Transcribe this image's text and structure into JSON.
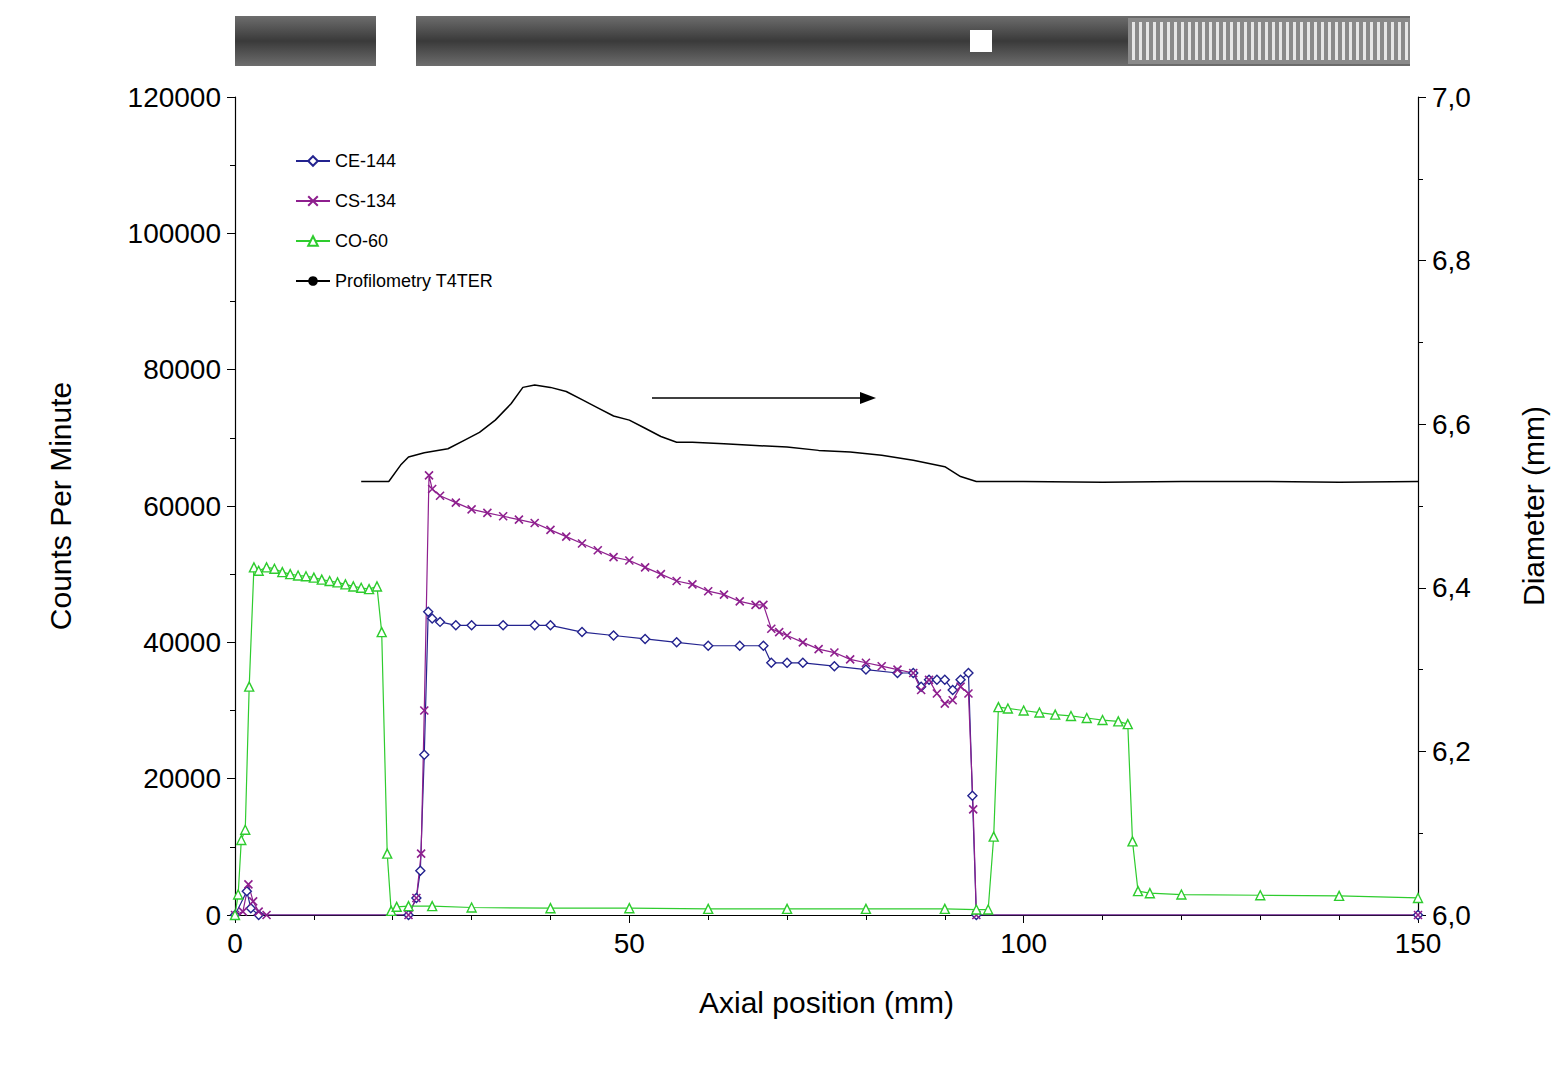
{
  "chart_data": {
    "type": "line",
    "xlabel": "Axial position (mm)",
    "ylabel": "Counts Per Minute",
    "y2label": "Diameter (mm)",
    "xlim": [
      0,
      150
    ],
    "xticks": [
      0,
      50,
      100,
      150
    ],
    "ylim": [
      0,
      120000
    ],
    "yticks": [
      0,
      20000,
      40000,
      60000,
      80000,
      100000,
      120000
    ],
    "y2lim": [
      6,
      7
    ],
    "y2ticks": [
      {
        "value": 6,
        "label": "6,0"
      },
      {
        "value": 6.2,
        "label": "6,2"
      },
      {
        "value": 6.4,
        "label": "6,4"
      },
      {
        "value": 6.6,
        "label": "6,6"
      },
      {
        "value": 6.8,
        "label": "6,8"
      },
      {
        "value": 7,
        "label": "7,0"
      }
    ],
    "grid": false,
    "legend": "upper left",
    "series": [
      {
        "name": "CE-144",
        "color": "#23238f",
        "marker": "diamond",
        "line_style": "solid",
        "x": [
          0,
          1.5,
          2,
          3,
          22,
          23,
          23.5,
          24,
          24.5,
          25,
          26,
          28,
          30,
          34,
          38,
          40,
          44,
          48,
          52,
          56,
          60,
          64,
          67,
          68,
          70,
          72,
          76,
          80,
          84,
          86,
          87,
          88,
          89,
          90,
          91,
          92,
          93,
          93.5,
          94,
          150
        ],
        "values": [
          0,
          3500,
          1000,
          0,
          0,
          2500,
          6500,
          23500,
          44500,
          43500,
          43000,
          42500,
          42500,
          42500,
          42500,
          42500,
          41500,
          41000,
          40500,
          40000,
          39500,
          39500,
          39500,
          37000,
          37000,
          37000,
          36500,
          36000,
          35500,
          35500,
          33500,
          34500,
          34500,
          34500,
          33000,
          34500,
          35500,
          17500,
          0,
          0
        ]
      },
      {
        "name": "CS-134",
        "color": "#8e1f8e",
        "marker": "x",
        "line_style": "solid",
        "x": [
          0,
          1,
          1.7,
          2.3,
          3,
          4,
          22,
          23,
          23.6,
          24,
          24.6,
          25,
          26,
          28,
          30,
          32,
          34,
          36,
          38,
          40,
          42,
          44,
          46,
          48,
          50,
          52,
          54,
          56,
          58,
          60,
          62,
          64,
          66,
          67,
          68,
          69,
          70,
          72,
          74,
          76,
          78,
          80,
          82,
          84,
          86,
          87,
          88,
          89,
          90,
          91,
          92,
          93,
          93.6,
          94,
          150
        ],
        "values": [
          0,
          500,
          4500,
          2000,
          500,
          0,
          0,
          2500,
          9000,
          30000,
          64500,
          62500,
          61500,
          60500,
          59500,
          59000,
          58500,
          58000,
          57500,
          56500,
          55500,
          54500,
          53500,
          52500,
          52000,
          51000,
          50000,
          49000,
          48500,
          47500,
          47000,
          46000,
          45500,
          45500,
          42000,
          41500,
          41000,
          40000,
          39000,
          38500,
          37500,
          37000,
          36500,
          36000,
          35500,
          33000,
          34500,
          32500,
          31000,
          31500,
          33500,
          32500,
          15500,
          0,
          0
        ]
      },
      {
        "name": "CO-60",
        "color": "#2ecc2e",
        "marker": "triangle",
        "line_style": "solid",
        "x": [
          0,
          0.4,
          0.8,
          1.3,
          1.8,
          2.4,
          3,
          4,
          5,
          6,
          7,
          8,
          9,
          10,
          11,
          12,
          13,
          14,
          15,
          16,
          17,
          18,
          18.6,
          19.3,
          19.8,
          20.5,
          22,
          25,
          30,
          40,
          50,
          60,
          70,
          80,
          90,
          94,
          95.5,
          96.2,
          96.8,
          98,
          100,
          102,
          104,
          106,
          108,
          110,
          112,
          113.2,
          113.8,
          114.5,
          116,
          120,
          130,
          140,
          150
        ],
        "values": [
          0,
          3000,
          11000,
          12500,
          33500,
          51000,
          50500,
          51000,
          50800,
          50300,
          50000,
          49800,
          49700,
          49500,
          49200,
          49000,
          48800,
          48500,
          48200,
          48000,
          47800,
          48200,
          41500,
          9000,
          600,
          1200,
          1300,
          1300,
          1100,
          1000,
          1000,
          900,
          900,
          900,
          900,
          800,
          800,
          11500,
          30500,
          30300,
          30000,
          29700,
          29400,
          29200,
          28900,
          28600,
          28400,
          28000,
          10800,
          3500,
          3200,
          3000,
          2900,
          2800,
          2500
        ]
      },
      {
        "name": "Profilometry T4TER",
        "color": "#000000",
        "marker": "none",
        "line_style": "solid",
        "axis": "y2",
        "x": [
          16,
          19.5,
          21,
          22,
          24,
          27,
          29,
          31,
          33,
          35,
          36.5,
          38,
          40,
          42,
          44,
          46,
          48,
          50,
          52,
          54,
          56,
          58,
          62,
          66,
          70,
          74,
          78,
          82,
          86,
          90,
          92,
          94,
          100,
          110,
          120,
          130,
          140,
          150
        ],
        "values": [
          6.53,
          6.53,
          6.55,
          6.56,
          6.565,
          6.57,
          6.58,
          6.59,
          6.605,
          6.625,
          6.645,
          6.648,
          6.645,
          6.64,
          6.63,
          6.62,
          6.61,
          6.605,
          6.595,
          6.585,
          6.578,
          6.578,
          6.576,
          6.574,
          6.572,
          6.568,
          6.566,
          6.562,
          6.556,
          6.548,
          6.536,
          6.53,
          6.53,
          6.529,
          6.53,
          6.53,
          6.529,
          6.53
        ]
      }
    ]
  }
}
